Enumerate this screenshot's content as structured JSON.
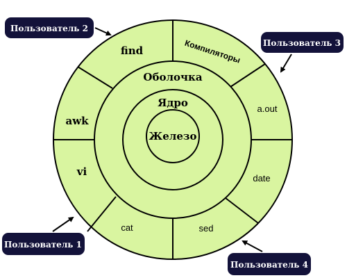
{
  "diagram": {
    "colors": {
      "fill": "#d9f5a0",
      "stroke": "#000000",
      "badge_bg": "#13123a",
      "badge_text": "#ffffff"
    },
    "core_label": "Железо",
    "kernel_label": "Ядро",
    "shell_label": "Оболочка",
    "programs": {
      "find": "find",
      "compilers": "Компиляторы",
      "aout": "a.out",
      "date": "date",
      "sed": "sed",
      "cat": "cat",
      "vi": "vi",
      "awk": "awk"
    },
    "users": {
      "user1": "Пользователь 1",
      "user2": "Пользователь 2",
      "user3": "Пользователь 3",
      "user4": "Пользователь 4"
    }
  }
}
